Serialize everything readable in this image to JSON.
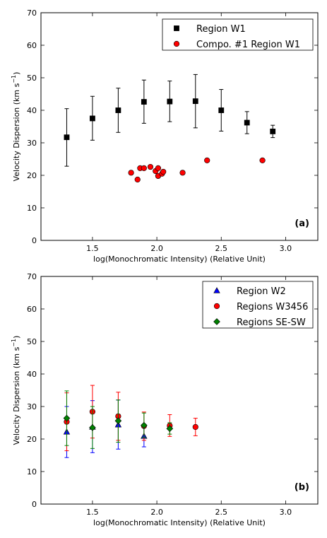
{
  "chart_data": [
    {
      "type": "scatter",
      "panel_label": "(a)",
      "xlabel": "log(Monochromatic Intensity) (Relative Unit)",
      "ylabel_text": "Velocity Dispersion (km s",
      "ylabel_sup": "−1",
      "ylabel_close": ")",
      "xlim": [
        1.1,
        3.25
      ],
      "ylim": [
        0,
        70
      ],
      "xticks": [
        "1.5",
        "2.0",
        "2.5",
        "3.0"
      ],
      "xtick_values": [
        1.5,
        2.0,
        2.5,
        3.0
      ],
      "yticks": [
        "0",
        "10",
        "20",
        "30",
        "40",
        "50",
        "60",
        "70"
      ],
      "ytick_values": [
        0,
        10,
        20,
        30,
        40,
        50,
        60,
        70
      ],
      "grid": false,
      "legend_position": "top-right",
      "series": [
        {
          "name": "Region W1",
          "marker": "square",
          "color": "#000000",
          "errcolor": "#000000",
          "points": [
            {
              "x": 1.3,
              "y": 31.7,
              "lo": 22.8,
              "hi": 40.5
            },
            {
              "x": 1.5,
              "y": 37.5,
              "lo": 30.8,
              "hi": 44.3
            },
            {
              "x": 1.7,
              "y": 40.0,
              "lo": 33.2,
              "hi": 46.8
            },
            {
              "x": 1.9,
              "y": 42.6,
              "lo": 36.0,
              "hi": 49.3
            },
            {
              "x": 2.1,
              "y": 42.7,
              "lo": 36.5,
              "hi": 49.0
            },
            {
              "x": 2.3,
              "y": 42.8,
              "lo": 34.6,
              "hi": 51.0
            },
            {
              "x": 2.5,
              "y": 40.0,
              "lo": 33.6,
              "hi": 46.4
            },
            {
              "x": 2.7,
              "y": 36.2,
              "lo": 32.8,
              "hi": 39.6
            },
            {
              "x": 2.9,
              "y": 33.5,
              "lo": 31.6,
              "hi": 35.4
            }
          ]
        },
        {
          "name": "Compo. #1 Region W1",
          "marker": "circle",
          "color": "#ff0000",
          "points": [
            {
              "x": 1.8,
              "y": 20.8
            },
            {
              "x": 1.85,
              "y": 18.7
            },
            {
              "x": 1.87,
              "y": 22.2
            },
            {
              "x": 1.9,
              "y": 22.2
            },
            {
              "x": 1.95,
              "y": 22.6
            },
            {
              "x": 1.99,
              "y": 21.3
            },
            {
              "x": 2.01,
              "y": 22.2
            },
            {
              "x": 2.01,
              "y": 19.8
            },
            {
              "x": 2.04,
              "y": 20.5
            },
            {
              "x": 2.05,
              "y": 21.1
            },
            {
              "x": 2.2,
              "y": 20.8
            },
            {
              "x": 2.39,
              "y": 24.6
            },
            {
              "x": 2.82,
              "y": 24.6
            }
          ]
        }
      ]
    },
    {
      "type": "scatter",
      "panel_label": "(b)",
      "xlabel": "log(Monochromatic Intensity) (Relative Unit)",
      "ylabel_text": "Velocity Dispersion (km s",
      "ylabel_sup": "−1",
      "ylabel_close": ")",
      "xlim": [
        1.1,
        3.25
      ],
      "ylim": [
        0,
        70
      ],
      "xticks": [
        "1.5",
        "2.0",
        "2.5",
        "3.0"
      ],
      "xtick_values": [
        1.5,
        2.0,
        2.5,
        3.0
      ],
      "yticks": [
        "0",
        "10",
        "20",
        "30",
        "40",
        "50",
        "60",
        "70"
      ],
      "ytick_values": [
        0,
        10,
        20,
        30,
        40,
        50,
        60,
        70
      ],
      "grid": false,
      "legend_position": "top-right",
      "series": [
        {
          "name": "Region W2",
          "marker": "triangle",
          "color": "#0000ff",
          "errcolor": "#0000ff",
          "points": [
            {
              "x": 1.3,
              "y": 22.2,
              "lo": 14.3,
              "hi": 30.0
            },
            {
              "x": 1.5,
              "y": 23.7,
              "lo": 15.8,
              "hi": 31.8
            },
            {
              "x": 1.7,
              "y": 24.4,
              "lo": 16.9,
              "hi": 32.0
            },
            {
              "x": 1.9,
              "y": 20.9,
              "lo": 17.6,
              "hi": 24.2
            }
          ]
        },
        {
          "name": "Regions W3456",
          "marker": "circle",
          "color": "#ff0000",
          "errcolor": "#ff0000",
          "points": [
            {
              "x": 1.3,
              "y": 25.3,
              "lo": 16.4,
              "hi": 34.2
            },
            {
              "x": 1.5,
              "y": 28.4,
              "lo": 20.3,
              "hi": 36.5
            },
            {
              "x": 1.7,
              "y": 27.0,
              "lo": 19.6,
              "hi": 34.4
            },
            {
              "x": 1.9,
              "y": 24.0,
              "lo": 19.6,
              "hi": 28.3
            },
            {
              "x": 2.1,
              "y": 24.1,
              "lo": 20.8,
              "hi": 27.5
            },
            {
              "x": 2.3,
              "y": 23.7,
              "lo": 21.0,
              "hi": 26.4
            }
          ]
        },
        {
          "name": "Regions SE-SW",
          "marker": "diamond",
          "color": "#008000",
          "errcolor": "#008000",
          "points": [
            {
              "x": 1.3,
              "y": 26.4,
              "lo": 18.0,
              "hi": 34.8
            },
            {
              "x": 1.5,
              "y": 23.5,
              "lo": 17.1,
              "hi": 30.0
            },
            {
              "x": 1.7,
              "y": 25.6,
              "lo": 19.0,
              "hi": 32.0
            },
            {
              "x": 1.9,
              "y": 24.2,
              "lo": 20.5,
              "hi": 28.0
            },
            {
              "x": 2.1,
              "y": 23.2,
              "lo": 21.5,
              "hi": 25.0
            }
          ]
        }
      ]
    }
  ]
}
